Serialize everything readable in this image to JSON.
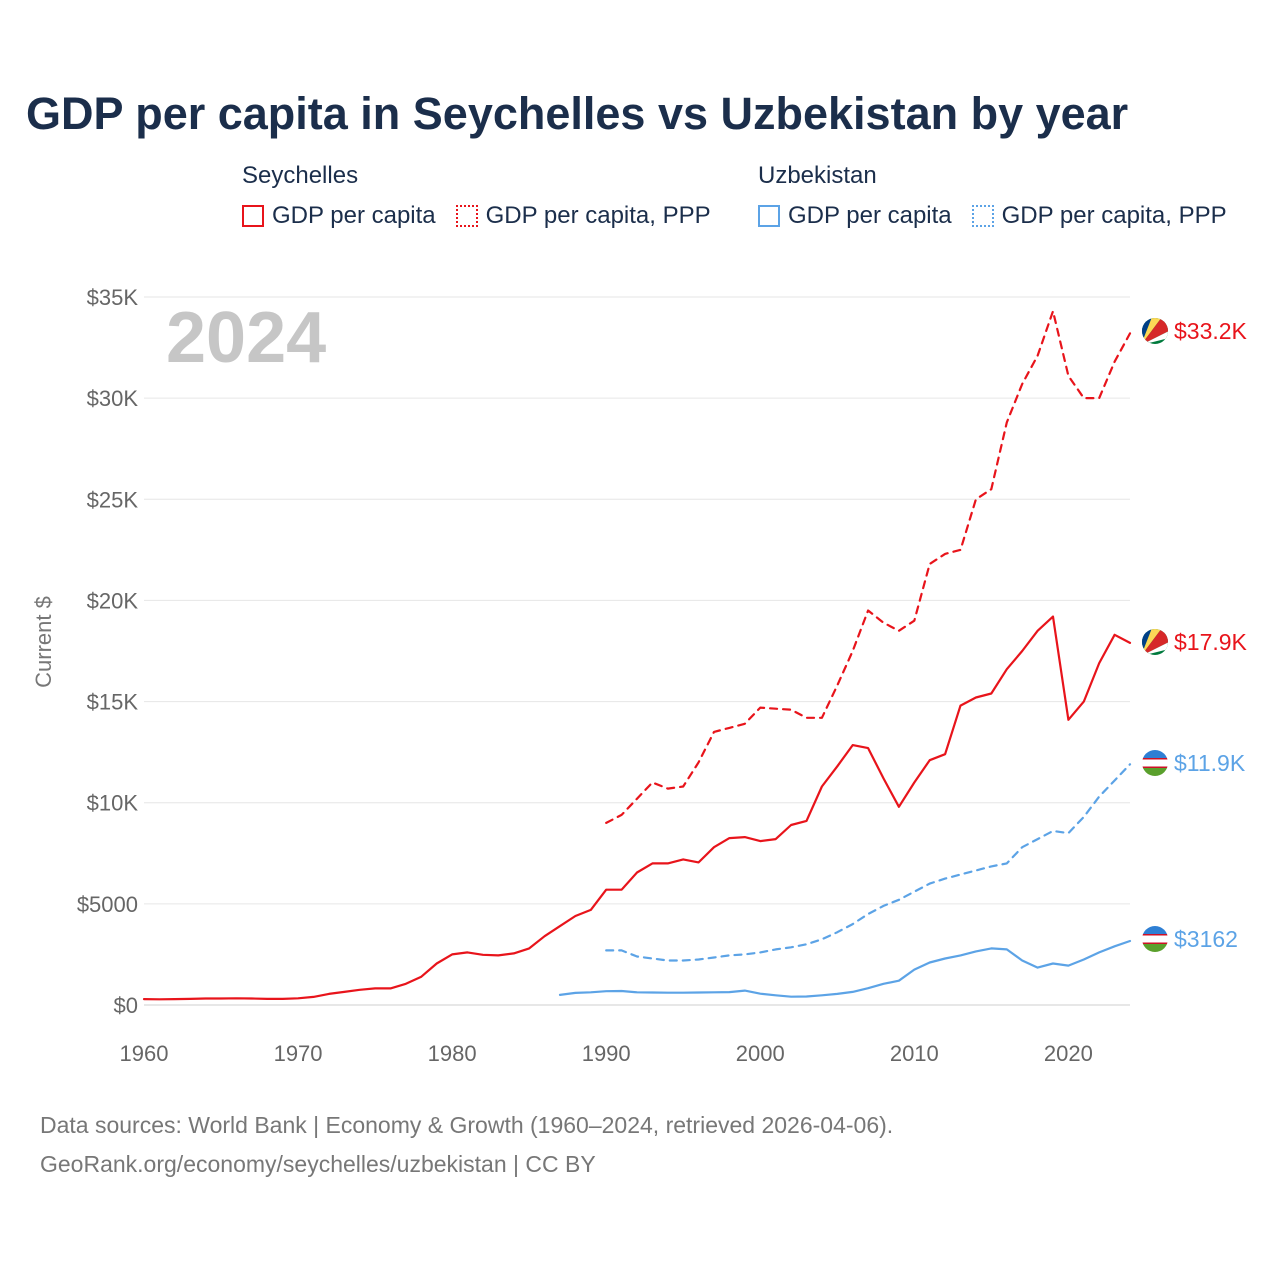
{
  "title": "GDP per capita in Seychelles vs Uzbekistan by year",
  "legend": {
    "groups": [
      {
        "country": "Seychelles",
        "color": "#e8141b",
        "items": [
          {
            "label": "GDP per capita",
            "style": "solid"
          },
          {
            "label": "GDP per capita, PPP",
            "style": "dotted"
          }
        ]
      },
      {
        "country": "Uzbekistan",
        "color": "#5ca3e6",
        "items": [
          {
            "label": "GDP per capita",
            "style": "solid"
          },
          {
            "label": "GDP per capita, PPP",
            "style": "dotted"
          }
        ]
      }
    ]
  },
  "chart_data": {
    "type": "line",
    "title": "GDP per capita in Seychelles vs Uzbekistan by year",
    "xlabel": "",
    "ylabel": "Current $",
    "xlim": [
      1960,
      2024
    ],
    "ylim": [
      0,
      35000
    ],
    "grid": true,
    "year_overlay": "2024",
    "x_ticks": [
      {
        "value": 1960,
        "label": "1960"
      },
      {
        "value": 1970,
        "label": "1970"
      },
      {
        "value": 1980,
        "label": "1980"
      },
      {
        "value": 1990,
        "label": "1990"
      },
      {
        "value": 2000,
        "label": "2000"
      },
      {
        "value": 2010,
        "label": "2010"
      },
      {
        "value": 2020,
        "label": "2020"
      }
    ],
    "y_ticks": [
      {
        "value": 0,
        "label": "$0"
      },
      {
        "value": 5000,
        "label": "$5000"
      },
      {
        "value": 10000,
        "label": "$10K"
      },
      {
        "value": 15000,
        "label": "$15K"
      },
      {
        "value": 20000,
        "label": "$20K"
      },
      {
        "value": 25000,
        "label": "$25K"
      },
      {
        "value": 30000,
        "label": "$30K"
      },
      {
        "value": 35000,
        "label": "$35K"
      }
    ],
    "series": [
      {
        "name": "Seychelles GDP per capita, PPP",
        "country": "Seychelles",
        "color": "#e8141b",
        "dash": true,
        "end_label": "$33.2K",
        "points": [
          [
            1990,
            9000
          ],
          [
            1991,
            9400
          ],
          [
            1992,
            10200
          ],
          [
            1993,
            11000
          ],
          [
            1994,
            10700
          ],
          [
            1995,
            10800
          ],
          [
            1996,
            12000
          ],
          [
            1997,
            13500
          ],
          [
            1998,
            13700
          ],
          [
            1999,
            13900
          ],
          [
            2000,
            14700
          ],
          [
            2001,
            14650
          ],
          [
            2002,
            14600
          ],
          [
            2003,
            14200
          ],
          [
            2004,
            14200
          ],
          [
            2005,
            15800
          ],
          [
            2006,
            17500
          ],
          [
            2007,
            19500
          ],
          [
            2008,
            18900
          ],
          [
            2009,
            18500
          ],
          [
            2010,
            19000
          ],
          [
            2011,
            21800
          ],
          [
            2012,
            22300
          ],
          [
            2013,
            22500
          ],
          [
            2014,
            25000
          ],
          [
            2015,
            25500
          ],
          [
            2016,
            28800
          ],
          [
            2017,
            30700
          ],
          [
            2018,
            32100
          ],
          [
            2019,
            34300
          ],
          [
            2020,
            31100
          ],
          [
            2021,
            30000
          ],
          [
            2022,
            30000
          ],
          [
            2023,
            31800
          ],
          [
            2024,
            33200
          ]
        ]
      },
      {
        "name": "Seychelles GDP per capita",
        "country": "Seychelles",
        "color": "#e8141b",
        "dash": false,
        "end_label": "$17.9K",
        "points": [
          [
            1960,
            290
          ],
          [
            1961,
            280
          ],
          [
            1962,
            290
          ],
          [
            1963,
            300
          ],
          [
            1964,
            320
          ],
          [
            1965,
            320
          ],
          [
            1966,
            330
          ],
          [
            1967,
            320
          ],
          [
            1968,
            300
          ],
          [
            1969,
            300
          ],
          [
            1970,
            330
          ],
          [
            1971,
            400
          ],
          [
            1972,
            550
          ],
          [
            1973,
            650
          ],
          [
            1974,
            750
          ],
          [
            1975,
            820
          ],
          [
            1976,
            820
          ],
          [
            1977,
            1050
          ],
          [
            1978,
            1400
          ],
          [
            1979,
            2050
          ],
          [
            1980,
            2500
          ],
          [
            1981,
            2600
          ],
          [
            1982,
            2480
          ],
          [
            1983,
            2450
          ],
          [
            1984,
            2550
          ],
          [
            1985,
            2800
          ],
          [
            1986,
            3400
          ],
          [
            1987,
            3900
          ],
          [
            1988,
            4400
          ],
          [
            1989,
            4700
          ],
          [
            1990,
            5700
          ],
          [
            1991,
            5700
          ],
          [
            1992,
            6550
          ],
          [
            1993,
            7000
          ],
          [
            1994,
            7000
          ],
          [
            1995,
            7200
          ],
          [
            1996,
            7050
          ],
          [
            1997,
            7800
          ],
          [
            1998,
            8250
          ],
          [
            1999,
            8300
          ],
          [
            2000,
            8100
          ],
          [
            2001,
            8200
          ],
          [
            2002,
            8900
          ],
          [
            2003,
            9100
          ],
          [
            2004,
            10800
          ],
          [
            2005,
            11800
          ],
          [
            2006,
            12850
          ],
          [
            2007,
            12700
          ],
          [
            2008,
            11200
          ],
          [
            2009,
            9800
          ],
          [
            2010,
            11000
          ],
          [
            2011,
            12100
          ],
          [
            2012,
            12400
          ],
          [
            2013,
            14800
          ],
          [
            2014,
            15200
          ],
          [
            2015,
            15400
          ],
          [
            2016,
            16600
          ],
          [
            2017,
            17500
          ],
          [
            2018,
            18500
          ],
          [
            2019,
            19200
          ],
          [
            2020,
            14100
          ],
          [
            2021,
            15000
          ],
          [
            2022,
            16900
          ],
          [
            2023,
            18300
          ],
          [
            2024,
            17900
          ]
        ]
      },
      {
        "name": "Uzbekistan GDP per capita, PPP",
        "country": "Uzbekistan",
        "color": "#5ca3e6",
        "dash": true,
        "end_label": "$11.9K",
        "points": [
          [
            1990,
            2700
          ],
          [
            1991,
            2700
          ],
          [
            1992,
            2400
          ],
          [
            1993,
            2300
          ],
          [
            1994,
            2200
          ],
          [
            1995,
            2200
          ],
          [
            1996,
            2250
          ],
          [
            1997,
            2350
          ],
          [
            1998,
            2450
          ],
          [
            1999,
            2500
          ],
          [
            2000,
            2600
          ],
          [
            2001,
            2750
          ],
          [
            2002,
            2850
          ],
          [
            2003,
            3000
          ],
          [
            2004,
            3250
          ],
          [
            2005,
            3600
          ],
          [
            2006,
            4000
          ],
          [
            2007,
            4500
          ],
          [
            2008,
            4900
          ],
          [
            2009,
            5200
          ],
          [
            2010,
            5600
          ],
          [
            2011,
            6000
          ],
          [
            2012,
            6250
          ],
          [
            2013,
            6450
          ],
          [
            2014,
            6650
          ],
          [
            2015,
            6850
          ],
          [
            2016,
            7000
          ],
          [
            2017,
            7800
          ],
          [
            2018,
            8200
          ],
          [
            2019,
            8600
          ],
          [
            2020,
            8500
          ],
          [
            2021,
            9300
          ],
          [
            2022,
            10300
          ],
          [
            2023,
            11100
          ],
          [
            2024,
            11900
          ]
        ]
      },
      {
        "name": "Uzbekistan GDP per capita",
        "country": "Uzbekistan",
        "color": "#5ca3e6",
        "dash": false,
        "end_label": "$3162",
        "points": [
          [
            1987,
            500
          ],
          [
            1988,
            600
          ],
          [
            1989,
            630
          ],
          [
            1990,
            680
          ],
          [
            1991,
            690
          ],
          [
            1992,
            630
          ],
          [
            1993,
            620
          ],
          [
            1994,
            610
          ],
          [
            1995,
            610
          ],
          [
            1996,
            620
          ],
          [
            1997,
            630
          ],
          [
            1998,
            640
          ],
          [
            1999,
            710
          ],
          [
            2000,
            560
          ],
          [
            2001,
            480
          ],
          [
            2002,
            410
          ],
          [
            2003,
            420
          ],
          [
            2004,
            480
          ],
          [
            2005,
            550
          ],
          [
            2006,
            650
          ],
          [
            2007,
            830
          ],
          [
            2008,
            1050
          ],
          [
            2009,
            1200
          ],
          [
            2010,
            1750
          ],
          [
            2011,
            2100
          ],
          [
            2012,
            2300
          ],
          [
            2013,
            2450
          ],
          [
            2014,
            2650
          ],
          [
            2015,
            2800
          ],
          [
            2016,
            2750
          ],
          [
            2017,
            2200
          ],
          [
            2018,
            1850
          ],
          [
            2019,
            2050
          ],
          [
            2020,
            1950
          ],
          [
            2021,
            2250
          ],
          [
            2022,
            2600
          ],
          [
            2023,
            2900
          ],
          [
            2024,
            3162
          ]
        ]
      }
    ]
  },
  "footer": {
    "line1": "Data sources: World Bank | Economy & Growth (1960–2024, retrieved 2026-04-06).",
    "line2": "GeoRank.org/economy/seychelles/uzbekistan | CC BY"
  }
}
